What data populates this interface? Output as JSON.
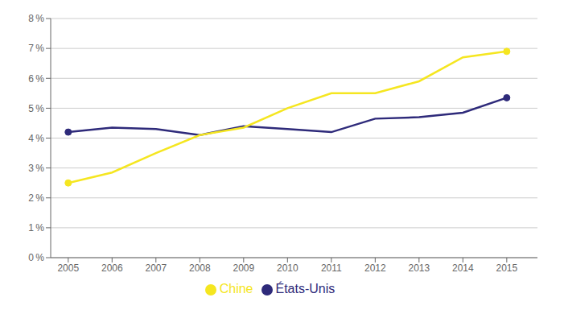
{
  "chart_data": {
    "type": "line",
    "x": [
      2005,
      2006,
      2007,
      2008,
      2009,
      2010,
      2011,
      2012,
      2013,
      2014,
      2015
    ],
    "series": [
      {
        "name": "États-Unis",
        "color": "#2e2a7a",
        "marker": "o",
        "values": [
          4.2,
          4.35,
          4.3,
          4.1,
          4.4,
          4.3,
          4.2,
          4.65,
          4.7,
          4.85,
          5.35
        ]
      },
      {
        "name": "Chine",
        "color": "#f5e620",
        "marker": "o",
        "values": [
          2.5,
          2.85,
          3.5,
          4.1,
          4.35,
          5.0,
          5.5,
          5.5,
          5.9,
          6.7,
          6.9
        ]
      }
    ],
    "xlim": [
      2004.6,
      2015.7
    ],
    "xticks": [
      2005,
      2006,
      2007,
      2008,
      2009,
      2010,
      2011,
      2012,
      2013,
      2014,
      2015
    ],
    "ylim": [
      0,
      8
    ],
    "yticks": [
      {
        "value": 0,
        "label": "0 %"
      },
      {
        "value": 1,
        "label": "1 %"
      },
      {
        "value": 2,
        "label": "2 %"
      },
      {
        "value": 3,
        "label": "3 %"
      },
      {
        "value": 4,
        "label": "4 %"
      },
      {
        "value": 5,
        "label": "5 %"
      },
      {
        "value": 6,
        "label": "6 %"
      },
      {
        "value": 7,
        "label": "7 %"
      },
      {
        "value": 8,
        "label": "8 %"
      }
    ],
    "grid": true,
    "legend": "bottom"
  }
}
